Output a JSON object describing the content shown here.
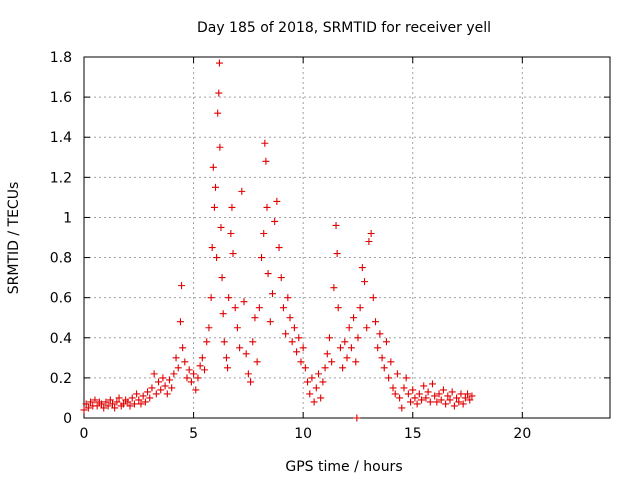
{
  "chart_data": {
    "type": "scatter",
    "title": "Day 185 of 2018, SRMTID for receiver yell",
    "xlabel": "GPS time / hours",
    "ylabel": "SRMTID / TECUs",
    "xlim": [
      0,
      24
    ],
    "ylim": [
      0,
      1.8
    ],
    "xticks": [
      "0",
      "5",
      "10",
      "15",
      "20"
    ],
    "yticks": [
      "0",
      "0.2",
      "0.4",
      "0.6",
      "0.8",
      "1",
      "1.2",
      "1.4",
      "1.6",
      "1.8"
    ],
    "grid": true,
    "series": [
      {
        "name": "SRMTID",
        "color": "#e00000",
        "marker": "plus",
        "points": [
          [
            0.0,
            0.04
          ],
          [
            0.1,
            0.07
          ],
          [
            0.2,
            0.05
          ],
          [
            0.3,
            0.08
          ],
          [
            0.4,
            0.06
          ],
          [
            0.5,
            0.09
          ],
          [
            0.6,
            0.06
          ],
          [
            0.7,
            0.08
          ],
          [
            0.8,
            0.07
          ],
          [
            0.9,
            0.05
          ],
          [
            1.0,
            0.08
          ],
          [
            1.1,
            0.06
          ],
          [
            1.2,
            0.09
          ],
          [
            1.3,
            0.07
          ],
          [
            1.4,
            0.05
          ],
          [
            1.5,
            0.08
          ],
          [
            1.6,
            0.1
          ],
          [
            1.7,
            0.06
          ],
          [
            1.8,
            0.07
          ],
          [
            1.9,
            0.09
          ],
          [
            2.0,
            0.08
          ],
          [
            2.1,
            0.06
          ],
          [
            2.2,
            0.1
          ],
          [
            2.3,
            0.07
          ],
          [
            2.4,
            0.12
          ],
          [
            2.5,
            0.09
          ],
          [
            2.6,
            0.07
          ],
          [
            2.7,
            0.11
          ],
          [
            2.8,
            0.08
          ],
          [
            2.9,
            0.13
          ],
          [
            3.0,
            0.1
          ],
          [
            3.1,
            0.15
          ],
          [
            3.2,
            0.22
          ],
          [
            3.3,
            0.12
          ],
          [
            3.4,
            0.18
          ],
          [
            3.5,
            0.14
          ],
          [
            3.6,
            0.2
          ],
          [
            3.7,
            0.16
          ],
          [
            3.8,
            0.12
          ],
          [
            3.9,
            0.19
          ],
          [
            4.0,
            0.15
          ],
          [
            4.1,
            0.22
          ],
          [
            4.2,
            0.3
          ],
          [
            4.3,
            0.25
          ],
          [
            4.4,
            0.48
          ],
          [
            4.45,
            0.66
          ],
          [
            4.5,
            0.35
          ],
          [
            4.6,
            0.28
          ],
          [
            4.7,
            0.2
          ],
          [
            4.8,
            0.24
          ],
          [
            4.9,
            0.18
          ],
          [
            5.0,
            0.22
          ],
          [
            5.1,
            0.14
          ],
          [
            5.2,
            0.2
          ],
          [
            5.3,
            0.26
          ],
          [
            5.4,
            0.3
          ],
          [
            5.5,
            0.24
          ],
          [
            5.6,
            0.38
          ],
          [
            5.7,
            0.45
          ],
          [
            5.8,
            0.6
          ],
          [
            5.85,
            0.85
          ],
          [
            5.9,
            1.25
          ],
          [
            5.95,
            1.05
          ],
          [
            6.0,
            1.15
          ],
          [
            6.05,
            0.8
          ],
          [
            6.1,
            1.52
          ],
          [
            6.15,
            1.62
          ],
          [
            6.18,
            1.77
          ],
          [
            6.2,
            1.35
          ],
          [
            6.25,
            0.95
          ],
          [
            6.3,
            0.7
          ],
          [
            6.35,
            0.52
          ],
          [
            6.4,
            0.38
          ],
          [
            6.5,
            0.3
          ],
          [
            6.55,
            0.25
          ],
          [
            6.6,
            0.6
          ],
          [
            6.7,
            0.92
          ],
          [
            6.75,
            1.05
          ],
          [
            6.8,
            0.82
          ],
          [
            6.9,
            0.55
          ],
          [
            7.0,
            0.45
          ],
          [
            7.1,
            0.35
          ],
          [
            7.2,
            1.13
          ],
          [
            7.3,
            0.58
          ],
          [
            7.4,
            0.32
          ],
          [
            7.5,
            0.22
          ],
          [
            7.6,
            0.18
          ],
          [
            7.7,
            0.38
          ],
          [
            7.8,
            0.5
          ],
          [
            7.9,
            0.28
          ],
          [
            8.0,
            0.55
          ],
          [
            8.1,
            0.8
          ],
          [
            8.2,
            0.92
          ],
          [
            8.25,
            1.37
          ],
          [
            8.3,
            1.28
          ],
          [
            8.35,
            1.05
          ],
          [
            8.4,
            0.72
          ],
          [
            8.5,
            0.48
          ],
          [
            8.6,
            0.62
          ],
          [
            8.7,
            0.98
          ],
          [
            8.8,
            1.08
          ],
          [
            8.9,
            0.85
          ],
          [
            9.0,
            0.7
          ],
          [
            9.1,
            0.55
          ],
          [
            9.2,
            0.42
          ],
          [
            9.3,
            0.6
          ],
          [
            9.4,
            0.5
          ],
          [
            9.5,
            0.38
          ],
          [
            9.6,
            0.45
          ],
          [
            9.7,
            0.33
          ],
          [
            9.8,
            0.4
          ],
          [
            9.9,
            0.28
          ],
          [
            10.0,
            0.35
          ],
          [
            10.1,
            0.25
          ],
          [
            10.2,
            0.18
          ],
          [
            10.3,
            0.12
          ],
          [
            10.4,
            0.2
          ],
          [
            10.5,
            0.08
          ],
          [
            10.6,
            0.15
          ],
          [
            10.7,
            0.22
          ],
          [
            10.8,
            0.1
          ],
          [
            10.9,
            0.18
          ],
          [
            11.0,
            0.25
          ],
          [
            11.1,
            0.32
          ],
          [
            11.2,
            0.4
          ],
          [
            11.3,
            0.28
          ],
          [
            11.4,
            0.65
          ],
          [
            11.5,
            0.96
          ],
          [
            11.55,
            0.82
          ],
          [
            11.6,
            0.55
          ],
          [
            11.7,
            0.35
          ],
          [
            11.8,
            0.25
          ],
          [
            11.9,
            0.38
          ],
          [
            12.0,
            0.3
          ],
          [
            12.1,
            0.45
          ],
          [
            12.2,
            0.35
          ],
          [
            12.3,
            0.5
          ],
          [
            12.4,
            0.28
          ],
          [
            12.45,
            0.0
          ],
          [
            12.5,
            0.4
          ],
          [
            12.6,
            0.55
          ],
          [
            12.7,
            0.75
          ],
          [
            12.8,
            0.68
          ],
          [
            12.9,
            0.45
          ],
          [
            13.0,
            0.88
          ],
          [
            13.1,
            0.92
          ],
          [
            13.2,
            0.6
          ],
          [
            13.3,
            0.48
          ],
          [
            13.4,
            0.35
          ],
          [
            13.5,
            0.42
          ],
          [
            13.6,
            0.3
          ],
          [
            13.7,
            0.25
          ],
          [
            13.8,
            0.38
          ],
          [
            13.9,
            0.2
          ],
          [
            14.0,
            0.28
          ],
          [
            14.1,
            0.15
          ],
          [
            14.2,
            0.12
          ],
          [
            14.3,
            0.22
          ],
          [
            14.4,
            0.1
          ],
          [
            14.5,
            0.05
          ],
          [
            14.6,
            0.15
          ],
          [
            14.7,
            0.2
          ],
          [
            14.8,
            0.12
          ],
          [
            14.9,
            0.08
          ],
          [
            15.0,
            0.14
          ],
          [
            15.1,
            0.1
          ],
          [
            15.2,
            0.07
          ],
          [
            15.3,
            0.12
          ],
          [
            15.4,
            0.09
          ],
          [
            15.5,
            0.16
          ],
          [
            15.6,
            0.1
          ],
          [
            15.7,
            0.13
          ],
          [
            15.8,
            0.08
          ],
          [
            15.9,
            0.17
          ],
          [
            16.0,
            0.11
          ],
          [
            16.1,
            0.08
          ],
          [
            16.2,
            0.12
          ],
          [
            16.3,
            0.09
          ],
          [
            16.4,
            0.14
          ],
          [
            16.5,
            0.07
          ],
          [
            16.6,
            0.11
          ],
          [
            16.7,
            0.09
          ],
          [
            16.8,
            0.13
          ],
          [
            16.9,
            0.06
          ],
          [
            17.0,
            0.1
          ],
          [
            17.1,
            0.08
          ],
          [
            17.2,
            0.12
          ],
          [
            17.3,
            0.07
          ],
          [
            17.4,
            0.1
          ],
          [
            17.5,
            0.12
          ],
          [
            17.6,
            0.09
          ],
          [
            17.7,
            0.11
          ]
        ]
      }
    ]
  }
}
